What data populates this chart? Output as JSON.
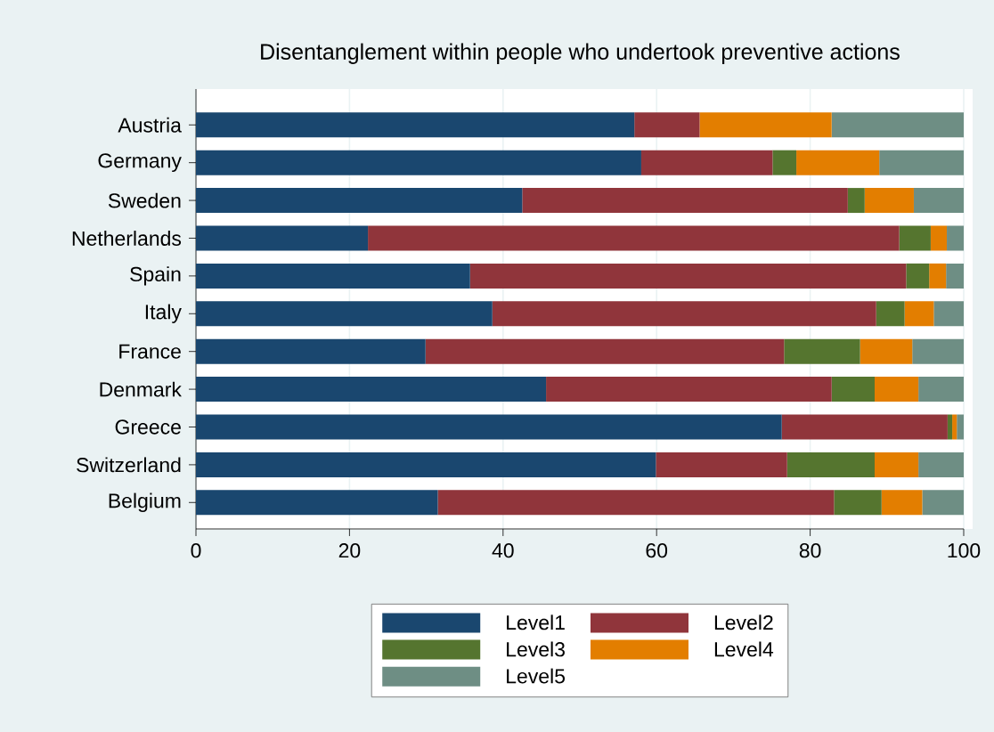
{
  "chart_data": {
    "type": "bar",
    "orientation": "horizontal",
    "stacked": true,
    "title": "Disentanglement within people who undertook preventive actions",
    "categories": [
      "Austria",
      "Germany",
      "Sweden",
      "Netherlands",
      "Spain",
      "Italy",
      "France",
      "Denmark",
      "Greece",
      "Switzerland",
      "Belgium"
    ],
    "series": [
      {
        "name": "Level1",
        "color": "#1a476f",
        "values": [
          57.1,
          58.0,
          42.5,
          22.4,
          35.7,
          38.6,
          29.9,
          45.6,
          76.3,
          59.9,
          31.5
        ]
      },
      {
        "name": "Level2",
        "color": "#90353b",
        "values": [
          8.5,
          17.1,
          42.4,
          69.2,
          56.8,
          50.0,
          46.7,
          37.2,
          21.6,
          17.1,
          51.6
        ]
      },
      {
        "name": "Level3",
        "color": "#55752f",
        "values": [
          0,
          3.1,
          2.2,
          4.1,
          3.0,
          3.7,
          9.9,
          5.6,
          0.6,
          11.4,
          6.2
        ]
      },
      {
        "name": "Level4",
        "color": "#e37e00",
        "values": [
          17.2,
          10.8,
          6.4,
          2.1,
          2.2,
          3.8,
          6.8,
          5.7,
          0.6,
          5.7,
          5.3
        ]
      },
      {
        "name": "Level5",
        "color": "#6e8e84",
        "values": [
          17.2,
          11.0,
          6.5,
          2.2,
          2.3,
          3.9,
          6.7,
          5.9,
          0.9,
          5.9,
          5.4
        ]
      }
    ],
    "xlim": [
      0,
      100
    ],
    "xticks": [
      0,
      20,
      40,
      60,
      80,
      100
    ],
    "grid": "x",
    "legend": "bottom"
  }
}
